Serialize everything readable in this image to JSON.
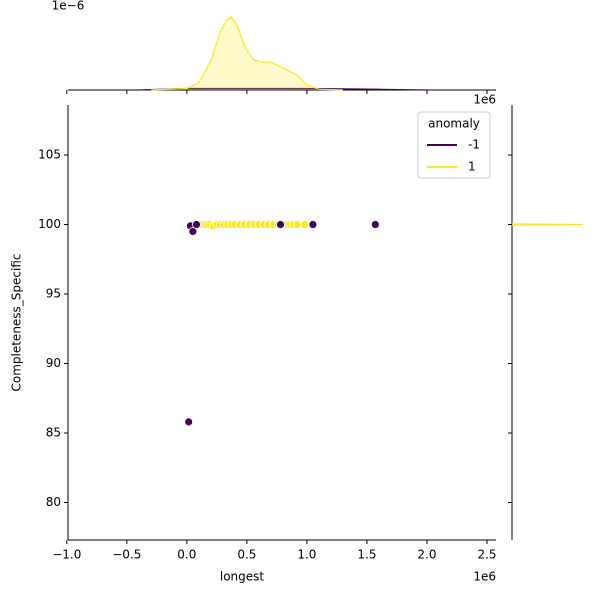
{
  "chart_data": [
    {
      "type": "scatter",
      "xlabel": "longest",
      "ylabel": "Completeness_Specific",
      "x_offset_label": "1e6",
      "xlim": [
        -990000,
        2575000
      ],
      "ylim": [
        77.3,
        108.6
      ],
      "xticks": [
        {
          "value": -1000000,
          "label": "−1.0"
        },
        {
          "value": -500000,
          "label": "−0.5"
        },
        {
          "value": 0,
          "label": "0.0"
        },
        {
          "value": 500000,
          "label": "0.5"
        },
        {
          "value": 1000000,
          "label": "1.0"
        },
        {
          "value": 1500000,
          "label": "1.5"
        },
        {
          "value": 2000000,
          "label": "2.0"
        },
        {
          "value": 2500000,
          "label": "2.5"
        }
      ],
      "yticks": [
        80,
        85,
        90,
        95,
        100,
        105
      ],
      "legend": {
        "title": "anomaly",
        "loc": "upper right"
      },
      "series": [
        {
          "name": "-1",
          "color": "#440154",
          "x": [
            30000,
            50000,
            80000,
            780000,
            1050000,
            1570000,
            15000
          ],
          "y": [
            99.9,
            99.5,
            100,
            100,
            100,
            100,
            85.8
          ]
        },
        {
          "name": "1",
          "color": "#fde725",
          "x": [
            100000,
            130000,
            160000,
            190000,
            220000,
            250000,
            280000,
            310000,
            340000,
            370000,
            400000,
            440000,
            480000,
            520000,
            560000,
            600000,
            640000,
            680000,
            720000,
            760000,
            800000,
            830000,
            860000,
            890000,
            920000,
            980000
          ],
          "y": [
            100,
            100,
            100,
            100,
            99.9,
            100,
            100,
            100,
            100,
            100,
            100,
            100,
            100,
            100,
            100,
            100,
            100,
            100,
            100,
            100,
            100,
            100,
            100,
            100,
            100,
            100
          ]
        }
      ]
    },
    {
      "type": "kde",
      "orientation": "x",
      "offset_label": "1e−6",
      "ylim": [
        0,
        1.12
      ],
      "series": [
        {
          "color": "#440154",
          "x": [
            -400000,
            0,
            500000,
            1000000,
            1600000,
            2000000
          ],
          "values": [
            0,
            0.02,
            0.02,
            0.02,
            0.01,
            0
          ]
        },
        {
          "color": "#fde725",
          "x": [
            -300000,
            0,
            100000,
            200000,
            280000,
            330000,
            370000,
            420000,
            480000,
            550000,
            620000,
            700000,
            780000,
            850000,
            920000,
            1000000,
            1100000,
            1300000
          ],
          "values": [
            0,
            0.02,
            0.1,
            0.4,
            0.8,
            0.95,
            1.0,
            0.88,
            0.6,
            0.42,
            0.38,
            0.38,
            0.32,
            0.26,
            0.2,
            0.07,
            0.01,
            0
          ]
        }
      ]
    },
    {
      "type": "kde",
      "orientation": "y",
      "offset_label": "1e6",
      "xlim": [
        0,
        1.1
      ],
      "series": [
        {
          "color": "#fde725",
          "y": [
            99.95,
            100,
            100.05
          ],
          "values": [
            0,
            1.0,
            0
          ]
        }
      ]
    }
  ]
}
